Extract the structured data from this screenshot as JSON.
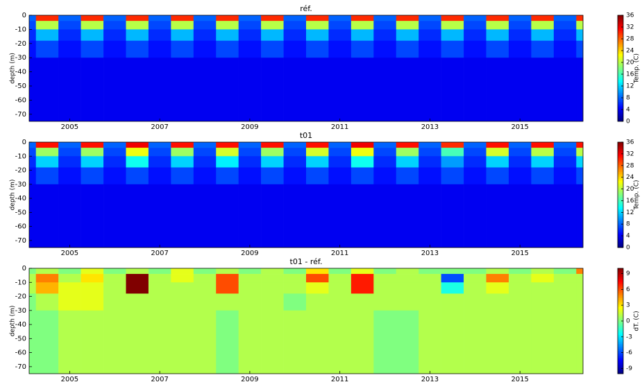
{
  "chart_data": [
    {
      "type": "heatmap",
      "title": "réf.",
      "ylabel": "depth (m)",
      "colorbar_label": "Temp. (C)",
      "colormap": "jet",
      "x_edges": [
        2004.1,
        2004.25,
        2004.75,
        2005.25,
        2005.75,
        2006.25,
        2006.75,
        2007.25,
        2007.75,
        2008.25,
        2008.75,
        2009.25,
        2009.75,
        2010.25,
        2010.75,
        2011.25,
        2011.75,
        2012.25,
        2012.75,
        2013.25,
        2013.75,
        2014.25,
        2014.75,
        2015.25,
        2015.75,
        2016.25,
        2016.4
      ],
      "y_edges": [
        0,
        -4,
        -10,
        -18,
        -30,
        -75
      ],
      "z": [
        [
          8,
          30,
          8,
          30,
          8,
          30,
          8,
          30,
          8,
          30,
          8,
          30,
          8,
          30,
          8,
          30,
          8,
          30,
          8,
          30,
          8,
          30,
          8,
          30,
          8,
          30
        ],
        [
          7,
          20,
          7,
          20,
          7,
          20,
          7,
          20,
          7,
          20,
          7,
          20,
          7,
          20,
          7,
          20,
          7,
          20,
          7,
          20,
          7,
          20,
          7,
          20,
          7,
          20
        ],
        [
          6,
          11,
          6,
          11,
          6,
          11,
          6,
          11,
          6,
          11,
          6,
          11,
          6,
          11,
          6,
          11,
          6,
          11,
          6,
          11,
          6,
          11,
          6,
          11,
          6,
          11
        ],
        [
          5,
          7,
          5,
          7,
          5,
          7,
          5,
          7,
          5,
          7,
          5,
          7,
          5,
          7,
          5,
          7,
          5,
          7,
          5,
          7,
          5,
          7,
          5,
          7,
          5,
          7
        ],
        [
          4,
          4,
          4,
          4,
          4,
          4,
          4,
          4,
          4,
          4,
          4,
          4,
          4,
          4,
          4,
          4,
          4,
          4,
          4,
          4,
          4,
          4,
          4,
          4,
          4,
          4
        ]
      ],
      "xlim": [
        2004.1,
        2016.4
      ],
      "xticks": [
        2005,
        2007,
        2009,
        2011,
        2013,
        2015
      ],
      "ylim": [
        -75,
        0
      ],
      "yticks": [
        0,
        -10,
        -20,
        -30,
        -40,
        -50,
        -60,
        -70
      ],
      "clim": [
        0,
        36
      ],
      "cticks": [
        0,
        4,
        8,
        12,
        16,
        20,
        24,
        28,
        32,
        36
      ]
    },
    {
      "type": "heatmap",
      "title": "t01",
      "ylabel": "depth (m)",
      "colorbar_label": "Temp. (C)",
      "colormap": "jet",
      "x_edges": [
        2004.1,
        2004.25,
        2004.75,
        2005.25,
        2005.75,
        2006.25,
        2006.75,
        2007.25,
        2007.75,
        2008.25,
        2008.75,
        2009.25,
        2009.75,
        2010.25,
        2010.75,
        2011.25,
        2011.75,
        2012.25,
        2012.75,
        2013.25,
        2013.75,
        2014.25,
        2014.75,
        2015.25,
        2015.75,
        2016.25,
        2016.4
      ],
      "y_edges": [
        0,
        -4,
        -10,
        -18,
        -30,
        -75
      ],
      "z": [
        [
          8,
          31,
          8,
          31,
          8,
          32,
          8,
          31,
          8,
          31,
          8,
          31,
          8,
          31,
          8,
          32,
          8,
          31,
          8,
          30,
          8,
          31,
          8,
          31,
          8,
          31
        ],
        [
          7,
          19,
          7,
          19,
          7,
          22,
          7,
          19,
          7,
          21,
          7,
          19,
          7,
          21,
          7,
          22,
          7,
          19,
          7,
          16,
          7,
          21,
          7,
          20,
          7,
          20
        ],
        [
          6,
          12,
          6,
          12,
          6,
          14,
          6,
          12,
          6,
          13,
          6,
          12,
          6,
          12,
          6,
          14,
          6,
          12,
          6,
          10,
          6,
          12,
          6,
          12,
          6,
          12
        ],
        [
          5,
          7,
          5,
          7,
          5,
          7,
          5,
          7,
          5,
          7,
          5,
          7,
          5,
          7,
          5,
          7,
          5,
          7,
          5,
          7,
          5,
          7,
          5,
          7,
          5,
          7
        ],
        [
          4,
          4,
          4,
          4,
          4,
          4,
          4,
          4,
          4,
          4,
          4,
          4,
          4,
          4,
          4,
          4,
          4,
          4,
          4,
          4,
          4,
          4,
          4,
          4,
          4,
          4
        ]
      ],
      "xlim": [
        2004.1,
        2016.4
      ],
      "xticks": [
        2005,
        2007,
        2009,
        2011,
        2013,
        2015
      ],
      "ylim": [
        -75,
        0
      ],
      "yticks": [
        0,
        -10,
        -20,
        -30,
        -40,
        -50,
        -60,
        -70
      ],
      "clim": [
        0,
        36
      ],
      "cticks": [
        0,
        4,
        8,
        12,
        16,
        20,
        24,
        28,
        32,
        36
      ]
    },
    {
      "type": "heatmap",
      "title": "t01 - réf.",
      "ylabel": "depth (m)",
      "colorbar_label": "dT. (C)",
      "colormap": "jet",
      "x_edges": [
        2004.1,
        2004.25,
        2004.75,
        2005.25,
        2005.75,
        2006.25,
        2006.75,
        2007.25,
        2007.75,
        2008.25,
        2008.75,
        2009.25,
        2009.75,
        2010.25,
        2010.75,
        2011.25,
        2011.75,
        2012.25,
        2012.75,
        2013.25,
        2013.75,
        2014.25,
        2014.75,
        2015.25,
        2015.75,
        2016.25,
        2016.4
      ],
      "y_edges": [
        0,
        -4,
        -10,
        -18,
        -30,
        -75
      ],
      "z": [
        [
          0,
          1,
          0,
          2,
          0,
          1,
          0,
          2,
          0,
          1,
          0,
          1,
          0,
          3,
          0,
          2,
          0,
          1,
          0,
          0,
          0,
          1,
          0,
          1,
          0,
          5
        ],
        [
          1,
          5,
          1,
          3,
          1,
          10,
          1,
          2,
          1,
          6,
          1,
          1,
          1,
          6,
          1,
          7,
          1,
          1,
          1,
          -6,
          1,
          5,
          1,
          2,
          1,
          1
        ],
        [
          1,
          4,
          2,
          2,
          1,
          10,
          1,
          1,
          1,
          6,
          1,
          1,
          1,
          2,
          1,
          7,
          1,
          1,
          1,
          -2,
          1,
          2,
          1,
          1,
          1,
          1
        ],
        [
          0,
          1,
          2,
          2,
          1,
          1,
          1,
          1,
          1,
          1,
          1,
          1,
          0,
          1,
          1,
          1,
          1,
          1,
          1,
          1,
          1,
          1,
          1,
          1,
          1,
          1
        ],
        [
          0,
          0,
          1,
          1,
          1,
          1,
          1,
          1,
          1,
          0,
          1,
          1,
          1,
          1,
          1,
          1,
          0,
          0,
          1,
          1,
          1,
          1,
          1,
          1,
          1,
          1
        ]
      ],
      "xlim": [
        2004.1,
        2016.4
      ],
      "xticks": [
        2005,
        2007,
        2009,
        2011,
        2013,
        2015
      ],
      "ylim": [
        -75,
        0
      ],
      "yticks": [
        0,
        -10,
        -20,
        -30,
        -40,
        -50,
        -60,
        -70
      ],
      "clim": [
        -10,
        10
      ],
      "cticks": [
        -9,
        -6,
        -3,
        0,
        3,
        6,
        9
      ]
    }
  ]
}
